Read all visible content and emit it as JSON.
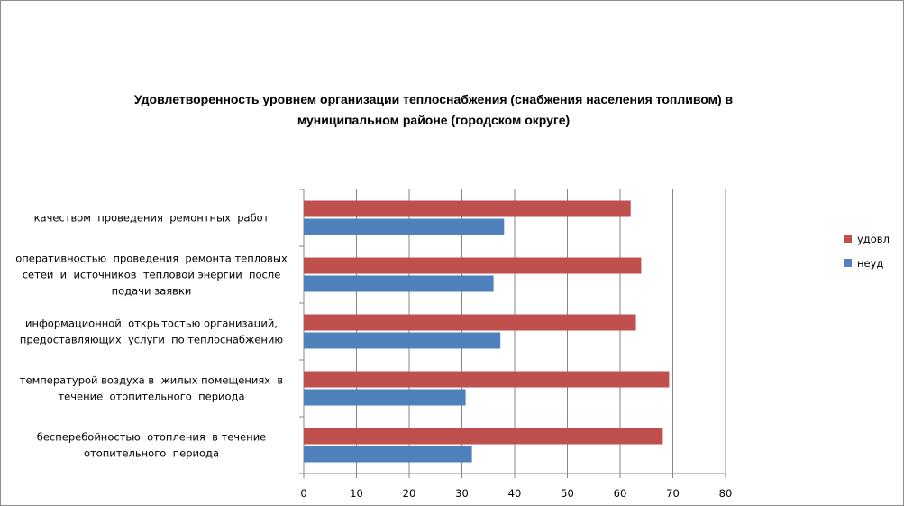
{
  "chart_data": {
    "type": "bar",
    "orientation": "horizontal",
    "title_lines": [
      "Удовлетворенность уровнем организации теплоснабжения (снабжения населения топливом) в",
      "муниципальном районе (городском округе)"
    ],
    "categories": [
      [
        "качеством  проведения  ремонтных  работ"
      ],
      [
        "оперативностью  проведения  ремонта тепловых",
        "сетей  и  источников  тепловой энергии  после",
        "подачи заявки"
      ],
      [
        "информационной  открытостью организаций,",
        "предоставляющих  услуги  по теплоснабжению"
      ],
      [
        "температурой воздуха в  жилых помещениях  в",
        "течение  отопительного  периода"
      ],
      [
        "бесперебойностью  отопления  в течение",
        "отопительного  периода"
      ]
    ],
    "series": [
      {
        "name": "удовл",
        "color": "#C0504D",
        "values": [
          62,
          64,
          63,
          69.3,
          68.1
        ]
      },
      {
        "name": "неуд",
        "color": "#4F81BD",
        "values": [
          38,
          36,
          37.3,
          30.7,
          31.9
        ]
      }
    ],
    "xlim": [
      0,
      80
    ],
    "xticks": [
      0,
      10,
      20,
      30,
      40,
      50,
      60,
      70,
      80
    ],
    "grid": true,
    "legend_position": "right"
  }
}
